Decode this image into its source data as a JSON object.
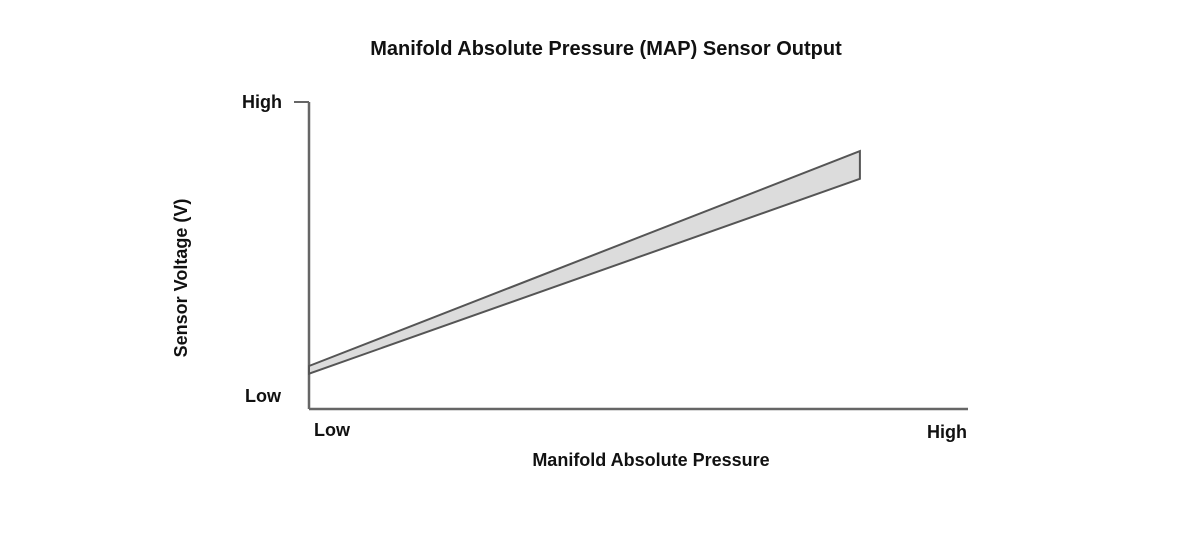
{
  "chart_data": {
    "type": "area",
    "title": "Manifold Absolute Pressure (MAP) Sensor Output",
    "xlabel": "Manifold Absolute Pressure",
    "ylabel": "Sensor Voltage (V)",
    "x_tick_labels": [
      "Low",
      "High"
    ],
    "y_tick_labels": [
      "Low",
      "High"
    ],
    "xlim": [
      0,
      1
    ],
    "ylim": [
      0,
      1
    ],
    "band": {
      "x": [
        0,
        0.836
      ],
      "upper": [
        0.14,
        0.84
      ],
      "lower": [
        0.115,
        0.75
      ]
    },
    "grid": false,
    "colors": {
      "band_fill": "#dcdcdc",
      "band_stroke": "#555555",
      "axis": "#666666"
    }
  }
}
